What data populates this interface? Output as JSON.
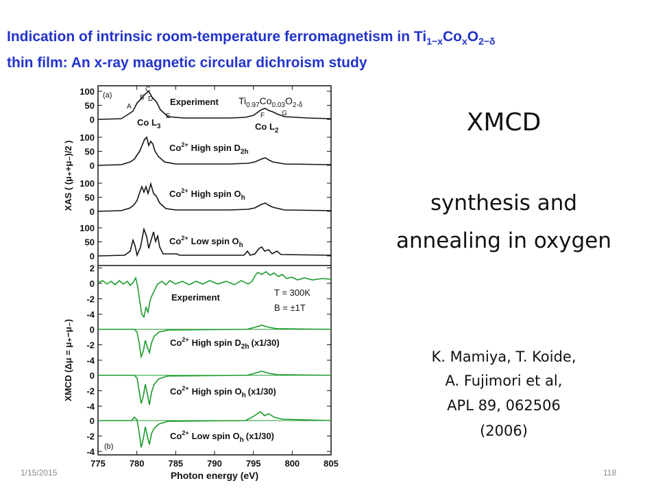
{
  "title": {
    "text1": "Indication of intrinsic room-temperature ferromagnetism in Ti",
    "sub1": "1−x",
    "text2": "Co",
    "sub2": "x",
    "text3": "O",
    "sub3": "2−δ",
    "line2": "thin film: An x-ray magnetic circular dichroism study"
  },
  "figure": {
    "panel_a": "(a)",
    "panel_b": "(b)",
    "xlim": [
      775,
      805
    ],
    "xticks": [
      775,
      780,
      785,
      790,
      795,
      800,
      805
    ],
    "xlabel": "Photon energy (eV)",
    "xas_ylabel": "XAS ( (μ₊+μ₋)/2 )",
    "xmcd_ylabel": "XMCD (Δμ = μ₊−μ₋)",
    "xas_yticks": [
      [
        100,
        50,
        0
      ],
      [
        100,
        50,
        0
      ],
      [
        100,
        50,
        0
      ],
      [
        100,
        50,
        0
      ]
    ],
    "xmcd_yticks": [
      [
        2,
        0,
        -2,
        -4
      ],
      [
        0,
        -2,
        -4
      ],
      [
        0,
        -2,
        -4
      ],
      [
        0,
        -2,
        -4
      ]
    ],
    "compound": {
      "a": "Ti",
      "b": "0.97",
      "c": "Co",
      "d": "0.03",
      "e": "O",
      "f": "2-δ"
    },
    "peaks": {
      "A": "A",
      "B": "B",
      "C": "C",
      "D": "D",
      "E": "E",
      "F": "F",
      "G": "G"
    },
    "edges": {
      "l3": "Co L",
      "l3sub": "3",
      "l2": "Co L",
      "l2sub": "2"
    },
    "xas_panels": [
      {
        "label": "Experiment"
      },
      {
        "ion": "Co",
        "charge": "2+",
        "label": "High spin D",
        "sub": "2h"
      },
      {
        "ion": "Co",
        "charge": "2+",
        "label": "High spin O",
        "sub": "h"
      },
      {
        "ion": "Co",
        "charge": "2+",
        "label": "Low spin O",
        "sub": "h"
      }
    ],
    "xmcd_panels": [
      {
        "label": "Experiment",
        "temp": "T = 300K",
        "field": "B = ±1T"
      },
      {
        "ion": "Co",
        "charge": "2+",
        "label": "High spin  D",
        "sub": "2h",
        "scale": "(x1/30)"
      },
      {
        "ion": "Co",
        "charge": "2+",
        "label": "High spin  O",
        "sub": "h",
        "scale": "(x1/30)"
      },
      {
        "ion": "Co",
        "charge": "2+",
        "label": "Low spin  O",
        "sub": "h",
        "scale": "(x1/30)"
      }
    ]
  },
  "side": {
    "heading": "XMCD",
    "method1": "synthesis and",
    "method2": "annealing in oxygen",
    "ref": [
      "K. Mamiya, T. Koide,",
      "A. Fujimori  et al,",
      "APL 89, 062506",
      "(2006)"
    ]
  },
  "footer": {
    "date": "1/15/2015",
    "page": "118"
  }
}
